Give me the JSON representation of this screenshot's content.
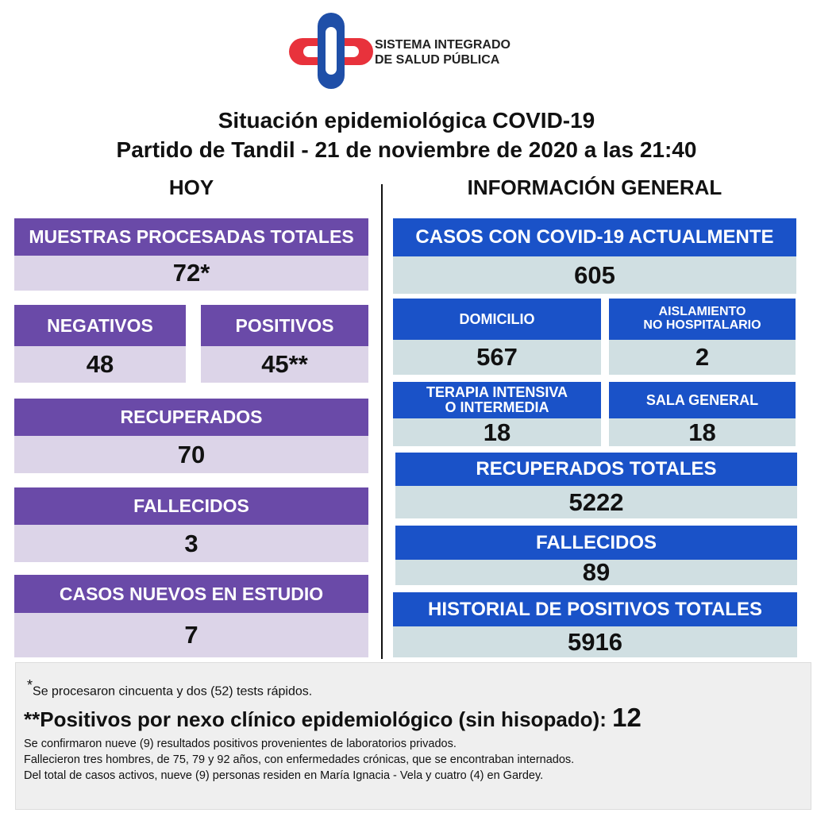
{
  "logo": {
    "line1": "SISTEMA INTEGRADO",
    "line2": "DE SALUD PÚBLICA"
  },
  "title": {
    "line1": "Situación epidemiológica COVID-19",
    "line2": "Partido de Tandil - 21 de noviembre de 2020 a las 21:40"
  },
  "hoy": {
    "heading": "HOY",
    "muestras": {
      "label": "MUESTRAS PROCESADAS TOTALES",
      "value": "72*"
    },
    "negativos": {
      "label": "NEGATIVOS",
      "value": "48"
    },
    "positivos": {
      "label": "POSITIVOS",
      "value": "45**"
    },
    "recuperados": {
      "label": "RECUPERADOS",
      "value": "70"
    },
    "fallecidos": {
      "label": "FALLECIDOS",
      "value": "3"
    },
    "nuevos": {
      "label": "CASOS NUEVOS EN ESTUDIO",
      "value": "7"
    }
  },
  "general": {
    "heading": "INFORMACIÓN GENERAL",
    "activos": {
      "label": "CASOS CON COVID-19 ACTUALMENTE",
      "value": "605"
    },
    "domicilio": {
      "label": "DOMICILIO",
      "value": "567"
    },
    "aislamiento": {
      "label1": "AISLAMIENTO",
      "label2": "NO HOSPITALARIO",
      "value": "2"
    },
    "terapia": {
      "label1": "TERAPIA INTENSIVA",
      "label2": "O INTERMEDIA",
      "value": "18"
    },
    "sala": {
      "label": "SALA GENERAL",
      "value": "18"
    },
    "recuperados": {
      "label": "RECUPERADOS TOTALES",
      "value": "5222"
    },
    "fallecidos": {
      "label": "FALLECIDOS",
      "value": "89"
    },
    "historial": {
      "label": "HISTORIAL DE POSITIVOS TOTALES",
      "value": "5916"
    }
  },
  "notes": {
    "asterisk": "*",
    "rapidos": "Se procesaron cincuenta y dos (52) tests rápidos.",
    "nexo_label": "**Positivos por nexo clínico epidemiológico (sin hisopado):",
    "nexo_value": "12",
    "lines": [
      "Se confirmaron nueve (9) resultados positivos provenientes de laboratorios privados.",
      "Fallecieron tres hombres, de 75, 79 y 92 años, con enfermedades crónicas, que se encontraban internados.",
      "Del total de casos activos, nueve  (9) personas residen en María Ignacia - Vela y cuatro  (4) en Gardey."
    ]
  },
  "colors": {
    "purple": "#6a4aa8",
    "lavender": "#dcd4e8",
    "blue": "#1a52c8",
    "lightblue": "#d0dfe2",
    "logo_red": "#e8323c",
    "logo_blue": "#1f4fa8"
  }
}
